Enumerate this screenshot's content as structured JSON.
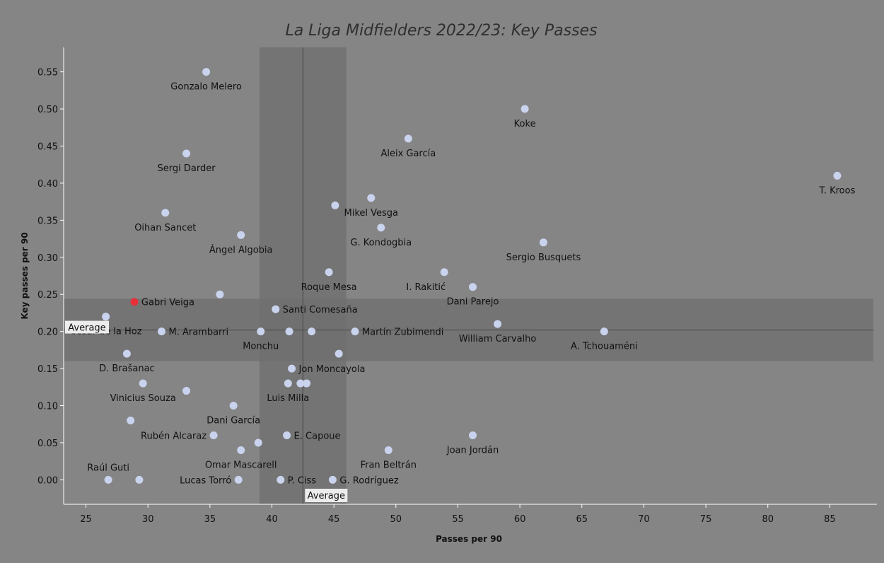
{
  "chart_data": {
    "type": "scatter",
    "title": "La Liga Midfielders 2022/23: Key Passes",
    "xlabel": "Passes per 90",
    "ylabel": "Key passes per 90",
    "xlim": [
      23.2,
      88.8
    ],
    "ylim": [
      -0.033,
      0.583
    ],
    "xticks": [
      25,
      30,
      35,
      40,
      45,
      50,
      55,
      60,
      65,
      70,
      75,
      80,
      85
    ],
    "yticks": [
      0.0,
      0.05,
      0.1,
      0.15,
      0.2,
      0.25,
      0.3,
      0.35,
      0.4,
      0.45,
      0.5,
      0.55
    ],
    "average": {
      "x": 42.5,
      "x_band": [
        39.0,
        46.0
      ],
      "x_label": "Average",
      "y": 0.202,
      "y_band": [
        0.16,
        0.244
      ],
      "y_label": "Average"
    },
    "colors": {
      "point": "#c9d3ee",
      "highlight": "#e8303a",
      "band": "#6f6f6f",
      "line": "#555555",
      "axis": "#ffffff"
    },
    "points": [
      {
        "name": "Gonzalo Melero",
        "x": 34.7,
        "y": 0.55,
        "anchor": "below"
      },
      {
        "name": "Koke",
        "x": 60.4,
        "y": 0.5,
        "anchor": "below"
      },
      {
        "name": "Aleix García",
        "x": 51.0,
        "y": 0.46,
        "anchor": "below"
      },
      {
        "name": "Sergi Darder",
        "x": 33.1,
        "y": 0.44,
        "anchor": "below"
      },
      {
        "name": "T. Kroos",
        "x": 85.6,
        "y": 0.41,
        "anchor": "below"
      },
      {
        "name": "Mikel Vesga",
        "x": 48.0,
        "y": 0.38,
        "anchor": "below"
      },
      {
        "name": "",
        "x": 45.1,
        "y": 0.37,
        "anchor": "none"
      },
      {
        "name": "Oihan Sancet",
        "x": 31.4,
        "y": 0.36,
        "anchor": "below"
      },
      {
        "name": "G. Kondogbia",
        "x": 48.8,
        "y": 0.34,
        "anchor": "below"
      },
      {
        "name": "Ángel Algobia",
        "x": 37.5,
        "y": 0.33,
        "anchor": "below"
      },
      {
        "name": "Sergio Busquets",
        "x": 61.9,
        "y": 0.32,
        "anchor": "below"
      },
      {
        "name": "Roque Mesa",
        "x": 44.6,
        "y": 0.28,
        "anchor": "below"
      },
      {
        "name": "I. Rakitić",
        "x": 53.9,
        "y": 0.28,
        "anchor": "below-left"
      },
      {
        "name": "Dani Parejo",
        "x": 56.2,
        "y": 0.26,
        "anchor": "below"
      },
      {
        "name": "",
        "x": 35.8,
        "y": 0.25,
        "anchor": "none"
      },
      {
        "name": "Gabri Veiga",
        "x": 28.9,
        "y": 0.24,
        "anchor": "right",
        "highlight": true
      },
      {
        "name": "Santi Comesaña",
        "x": 40.3,
        "y": 0.23,
        "anchor": "right"
      },
      {
        "name": "César de la Hoz",
        "x": 26.6,
        "y": 0.22,
        "anchor": "below"
      },
      {
        "name": "William Carvalho",
        "x": 58.2,
        "y": 0.21,
        "anchor": "below"
      },
      {
        "name": "M. Arambarri",
        "x": 31.1,
        "y": 0.2,
        "anchor": "right"
      },
      {
        "name": "Monchu",
        "x": 39.1,
        "y": 0.2,
        "anchor": "below"
      },
      {
        "name": "",
        "x": 41.4,
        "y": 0.2,
        "anchor": "none"
      },
      {
        "name": "",
        "x": 43.2,
        "y": 0.2,
        "anchor": "none"
      },
      {
        "name": "Martín Zubimendi",
        "x": 46.7,
        "y": 0.2,
        "anchor": "right"
      },
      {
        "name": "A. Tchouaméni",
        "x": 66.8,
        "y": 0.2,
        "anchor": "below"
      },
      {
        "name": "D. Brašanac",
        "x": 28.3,
        "y": 0.17,
        "anchor": "below"
      },
      {
        "name": "",
        "x": 45.4,
        "y": 0.17,
        "anchor": "none"
      },
      {
        "name": "Jon Moncayola",
        "x": 41.6,
        "y": 0.15,
        "anchor": "right"
      },
      {
        "name": "Vinicius Souza",
        "x": 29.6,
        "y": 0.13,
        "anchor": "below"
      },
      {
        "name": "Luis Milla",
        "x": 41.3,
        "y": 0.13,
        "anchor": "below"
      },
      {
        "name": "",
        "x": 42.3,
        "y": 0.13,
        "anchor": "none"
      },
      {
        "name": "",
        "x": 42.8,
        "y": 0.13,
        "anchor": "none"
      },
      {
        "name": "",
        "x": 33.1,
        "y": 0.12,
        "anchor": "none"
      },
      {
        "name": "Dani García",
        "x": 36.9,
        "y": 0.1,
        "anchor": "below"
      },
      {
        "name": "",
        "x": 28.6,
        "y": 0.08,
        "anchor": "none"
      },
      {
        "name": "Rubén Alcaraz",
        "x": 35.3,
        "y": 0.06,
        "anchor": "left"
      },
      {
        "name": "E. Capoue",
        "x": 41.2,
        "y": 0.06,
        "anchor": "right"
      },
      {
        "name": "Joan Jordán",
        "x": 56.2,
        "y": 0.06,
        "anchor": "below"
      },
      {
        "name": "",
        "x": 38.9,
        "y": 0.05,
        "anchor": "none"
      },
      {
        "name": "Omar Mascarell",
        "x": 37.5,
        "y": 0.04,
        "anchor": "below"
      },
      {
        "name": "Fran Beltrán",
        "x": 49.4,
        "y": 0.04,
        "anchor": "below"
      },
      {
        "name": "Raúl Guti",
        "x": 26.8,
        "y": 0.0,
        "anchor": "above"
      },
      {
        "name": "",
        "x": 29.3,
        "y": 0.0,
        "anchor": "none"
      },
      {
        "name": "Lucas Torró",
        "x": 37.3,
        "y": 0.0,
        "anchor": "left"
      },
      {
        "name": "P. Ciss",
        "x": 40.7,
        "y": 0.0,
        "anchor": "right"
      },
      {
        "name": "G. Rodríguez",
        "x": 44.9,
        "y": 0.0,
        "anchor": "right"
      }
    ]
  }
}
